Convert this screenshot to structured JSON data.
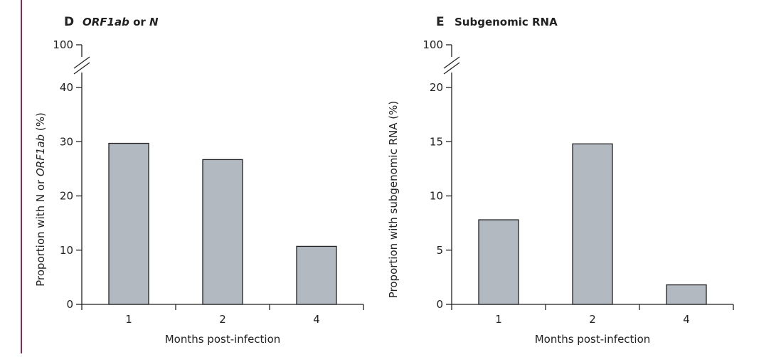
{
  "figure": {
    "accent_rule_color": "#8a2a55",
    "bar_color": "#b3b9c0"
  },
  "chart_data": [
    {
      "type": "bar",
      "panel": "D",
      "title_parts": [
        {
          "text": "ORF1ab",
          "italic": true
        },
        {
          "text": " or ",
          "italic": false
        },
        {
          "text": "N",
          "italic": true
        }
      ],
      "xlabel": "Months post-infection",
      "ylabel_parts": [
        {
          "text": "Proportion with N or ",
          "italic": false
        },
        {
          "text": "ORF1ab",
          "italic": true
        },
        {
          "text": " (%)",
          "italic": false
        }
      ],
      "categories": [
        "1",
        "2",
        "4"
      ],
      "values": [
        29.7,
        26.7,
        10.7
      ],
      "yticks": [
        0,
        10,
        20,
        30,
        40
      ],
      "ytick_labels": [
        "0",
        "10",
        "20",
        "30",
        "40"
      ],
      "broken_axis_label": "100",
      "ylim": [
        0,
        40
      ],
      "grid": false
    },
    {
      "type": "bar",
      "panel": "E",
      "title_parts": [
        {
          "text": "Subgenomic RNA",
          "italic": false
        }
      ],
      "xlabel": "Months post-infection",
      "ylabel_parts": [
        {
          "text": "Proportion with subgenomic RNA (%)",
          "italic": false
        }
      ],
      "categories": [
        "1",
        "2",
        "4"
      ],
      "values": [
        7.8,
        14.8,
        1.8
      ],
      "yticks": [
        0,
        5,
        10,
        15,
        20
      ],
      "ytick_labels": [
        "0",
        "5",
        "10",
        "15",
        "20"
      ],
      "broken_axis_label": "100",
      "ylim": [
        0,
        20
      ],
      "grid": false
    }
  ]
}
